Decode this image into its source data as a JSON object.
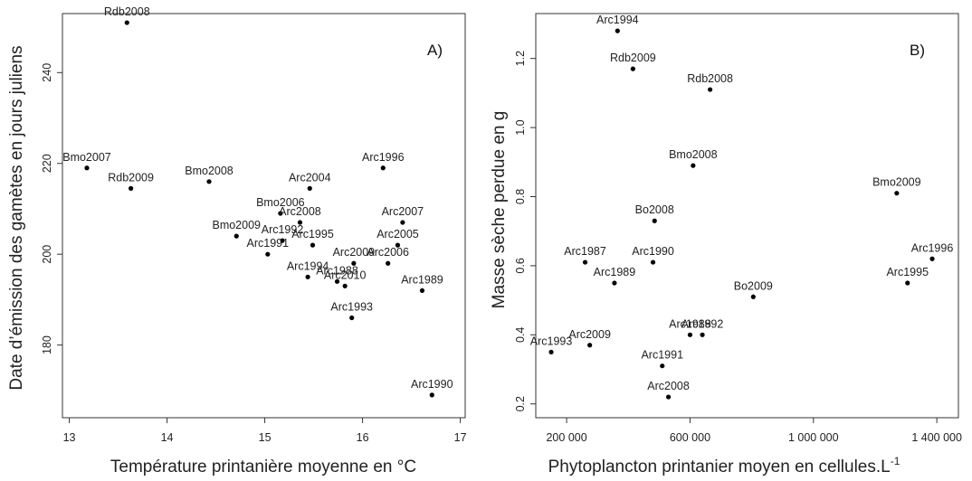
{
  "chart_data": [
    {
      "type": "scatter",
      "tag": "A)",
      "xlabel": "Température printanière moyenne en °C",
      "ylabel": "Date d’émission des gamètes en jours juliens",
      "xlim": [
        12.93,
        17.05
      ],
      "ylim": [
        164,
        253
      ],
      "xticks": [
        {
          "value": 13,
          "label": "13"
        },
        {
          "value": 14,
          "label": "14"
        },
        {
          "value": 15,
          "label": "15"
        },
        {
          "value": 16,
          "label": "16"
        },
        {
          "value": 17,
          "label": "17"
        }
      ],
      "yticks": [
        {
          "value": 180,
          "label": "180"
        },
        {
          "value": 200,
          "label": "200"
        },
        {
          "value": 220,
          "label": "220"
        },
        {
          "value": 240,
          "label": "240"
        }
      ],
      "points": [
        {
          "label": "Rdb2008",
          "x": 13.59,
          "y": 251
        },
        {
          "label": "Bmo2007",
          "x": 13.18,
          "y": 219
        },
        {
          "label": "Rdb2009",
          "x": 13.63,
          "y": 214.5
        },
        {
          "label": "Bmo2008",
          "x": 14.43,
          "y": 216
        },
        {
          "label": "Arc1996",
          "x": 16.21,
          "y": 219
        },
        {
          "label": "Arc2004",
          "x": 15.46,
          "y": 214.5
        },
        {
          "label": "Bmo2006",
          "x": 15.16,
          "y": 209
        },
        {
          "label": "Arc2008",
          "x": 15.36,
          "y": 207
        },
        {
          "label": "Arc2007",
          "x": 16.41,
          "y": 207
        },
        {
          "label": "Bmo2009",
          "x": 14.71,
          "y": 204
        },
        {
          "label": "Arc1992",
          "x": 15.18,
          "y": 203
        },
        {
          "label": "Arc1995",
          "x": 15.49,
          "y": 202
        },
        {
          "label": "Arc2005",
          "x": 16.36,
          "y": 202
        },
        {
          "label": "Arc1991",
          "x": 15.03,
          "y": 200
        },
        {
          "label": "Arc2009",
          "x": 15.91,
          "y": 198
        },
        {
          "label": "Arc2006",
          "x": 16.26,
          "y": 198
        },
        {
          "label": "Arc1994",
          "x": 15.44,
          "y": 195
        },
        {
          "label": "Arc1988",
          "x": 15.74,
          "y": 194
        },
        {
          "label": "Arc2010",
          "x": 15.82,
          "y": 193
        },
        {
          "label": "Arc1989",
          "x": 16.61,
          "y": 192
        },
        {
          "label": "Arc1993",
          "x": 15.89,
          "y": 186
        },
        {
          "label": "Arc1990",
          "x": 16.71,
          "y": 169
        }
      ]
    },
    {
      "type": "scatter",
      "tag": "B)",
      "xlabel": "Phytoplancton printanier moyen en cellules.L",
      "xlabel_sup": "-1",
      "ylabel": "Masse sèche perdue en g",
      "xlim": [
        100000,
        1470000
      ],
      "ylim": [
        0.16,
        1.33
      ],
      "xticks": [
        {
          "value": 200000,
          "label": "200 000"
        },
        {
          "value": 600000,
          "label": "600 000"
        },
        {
          "value": 1000000,
          "label": "1 000 000"
        },
        {
          "value": 1400000,
          "label": "1 400 000"
        }
      ],
      "yticks": [
        {
          "value": 0.2,
          "label": "0.2"
        },
        {
          "value": 0.4,
          "label": "0.4"
        },
        {
          "value": 0.6,
          "label": "0.6"
        },
        {
          "value": 0.8,
          "label": "0.8"
        },
        {
          "value": 1.0,
          "label": "1.0"
        },
        {
          "value": 1.2,
          "label": "1.2"
        }
      ],
      "points": [
        {
          "label": "Arc1994",
          "x": 365000,
          "y": 1.28
        },
        {
          "label": "Rdb2009",
          "x": 415000,
          "y": 1.17
        },
        {
          "label": "Rdb2008",
          "x": 665000,
          "y": 1.11
        },
        {
          "label": "Bmo2008",
          "x": 610000,
          "y": 0.89
        },
        {
          "label": "Bmo2009",
          "x": 1270000,
          "y": 0.81
        },
        {
          "label": "Bo2008",
          "x": 485000,
          "y": 0.73
        },
        {
          "label": "Arc1987",
          "x": 260000,
          "y": 0.61
        },
        {
          "label": "Arc1990",
          "x": 480000,
          "y": 0.61
        },
        {
          "label": "Arc1996",
          "x": 1385000,
          "y": 0.62
        },
        {
          "label": "Arc1989",
          "x": 355000,
          "y": 0.55
        },
        {
          "label": "Arc1995",
          "x": 1305000,
          "y": 0.55
        },
        {
          "label": "Bo2009",
          "x": 805000,
          "y": 0.51
        },
        {
          "label": "Arc1988",
          "x": 600000,
          "y": 0.4
        },
        {
          "label": "Arc1992",
          "x": 640000,
          "y": 0.4
        },
        {
          "label": "Arc2009",
          "x": 275000,
          "y": 0.37
        },
        {
          "label": "Arc1993",
          "x": 150000,
          "y": 0.35
        },
        {
          "label": "Arc1991",
          "x": 510000,
          "y": 0.31
        },
        {
          "label": "Arc2008",
          "x": 530000,
          "y": 0.22
        }
      ]
    }
  ]
}
